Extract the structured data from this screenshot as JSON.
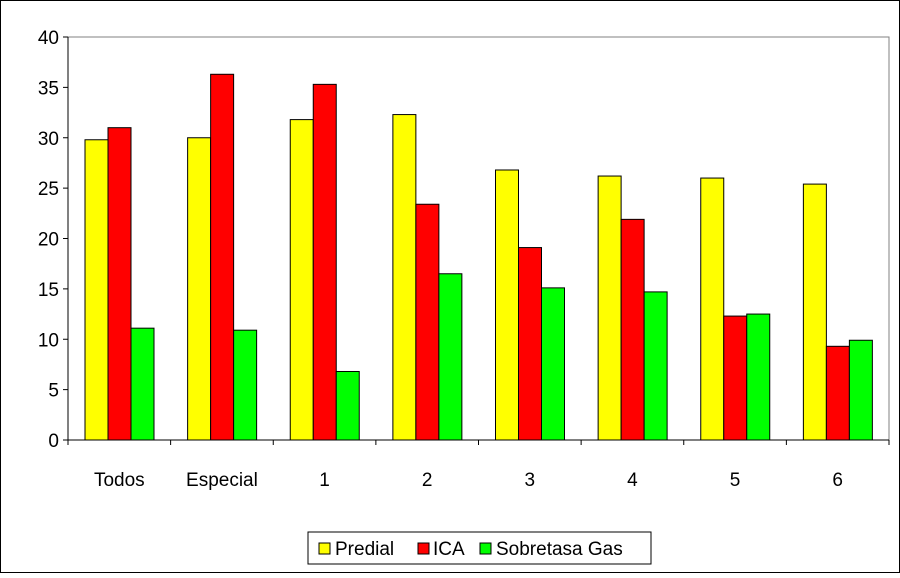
{
  "chart_data": {
    "type": "bar",
    "title": "",
    "xlabel": "",
    "ylabel": "",
    "categories": [
      "Todos",
      "Especial",
      "1",
      "2",
      "3",
      "4",
      "5",
      "6"
    ],
    "series": [
      {
        "name": "Predial",
        "color": "#ffff00",
        "values": [
          29.8,
          30.0,
          31.8,
          32.3,
          26.8,
          26.2,
          26.0,
          25.4
        ]
      },
      {
        "name": "ICA",
        "color": "#ff0000",
        "values": [
          31.0,
          36.3,
          35.3,
          23.4,
          19.1,
          21.9,
          12.3,
          9.3
        ]
      },
      {
        "name": "Sobretasa Gas",
        "color": "#00ff00",
        "values": [
          11.1,
          10.9,
          6.8,
          16.5,
          15.1,
          14.7,
          12.5,
          9.9
        ]
      }
    ],
    "ylim": [
      0,
      40
    ],
    "yticks": [
      0,
      5,
      10,
      15,
      20,
      25,
      30,
      35,
      40
    ],
    "grid": false,
    "legend_position": "bottom-center"
  }
}
